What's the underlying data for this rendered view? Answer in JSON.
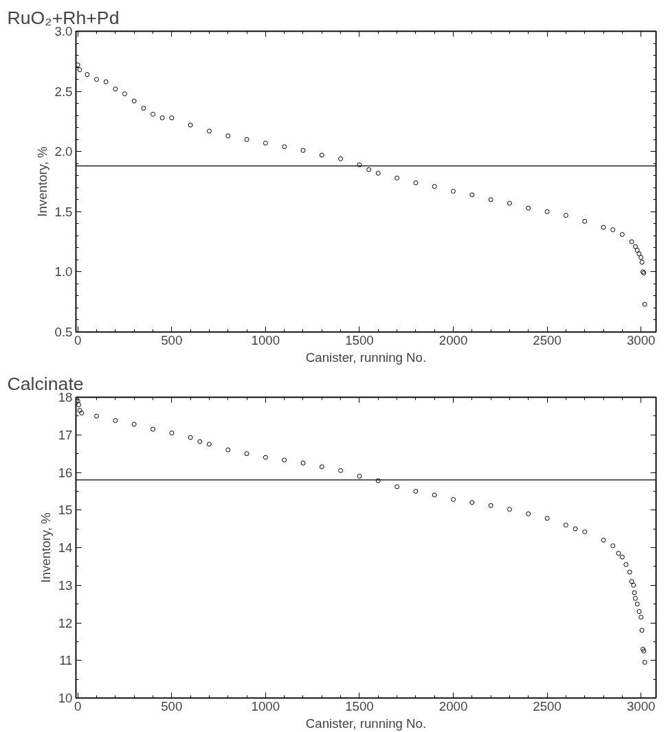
{
  "chart_data": [
    {
      "type": "scatter",
      "title": "RuO₂+Rh+Pd",
      "xlabel": "Canister, running No.",
      "ylabel": "Inventory, %",
      "marker": "circle",
      "grid": false,
      "xlim": [
        -10,
        3080
      ],
      "xticks": [
        0,
        500,
        1000,
        1500,
        2000,
        2500,
        3000
      ],
      "ylim": [
        0.5,
        3.0
      ],
      "yticks": [
        {
          "value": 0.5,
          "label": "0.5"
        },
        {
          "value": 1,
          "label": "1.0"
        },
        {
          "value": 1.5,
          "label": "1.5"
        },
        {
          "value": 2,
          "label": "2.0"
        },
        {
          "value": 2.5,
          "label": "2.5"
        },
        {
          "value": 3,
          "label": "3.0"
        }
      ],
      "ref_lines": [
        {
          "axis": "y",
          "value": 1.88,
          "color": "#000000"
        }
      ],
      "series": [
        {
          "color": "#000000",
          "x": [
            0,
            10,
            50,
            100,
            150,
            200,
            250,
            300,
            350,
            400,
            450,
            500,
            600,
            700,
            800,
            900,
            1000,
            1100,
            1200,
            1300,
            1400,
            1500,
            1550,
            1600,
            1700,
            1800,
            1900,
            2000,
            2100,
            2200,
            2300,
            2400,
            2500,
            2600,
            2700,
            2800,
            2850,
            2900,
            2950,
            2970,
            2980,
            2990,
            3000,
            3005,
            3010,
            3015,
            3020
          ],
          "values": [
            2.72,
            2.68,
            2.64,
            2.6,
            2.58,
            2.52,
            2.48,
            2.42,
            2.36,
            2.31,
            2.28,
            2.28,
            2.22,
            2.17,
            2.13,
            2.1,
            2.07,
            2.04,
            2.01,
            1.97,
            1.94,
            1.89,
            1.85,
            1.82,
            1.78,
            1.74,
            1.71,
            1.67,
            1.64,
            1.6,
            1.57,
            1.53,
            1.5,
            1.47,
            1.42,
            1.37,
            1.35,
            1.31,
            1.25,
            1.21,
            1.18,
            1.15,
            1.12,
            1.08,
            1.0,
            0.99,
            0.73
          ]
        }
      ]
    },
    {
      "type": "scatter",
      "title": "Calcinate",
      "xlabel": "Canister, running No.",
      "ylabel": "Inventory, %",
      "marker": "circle",
      "grid": false,
      "xlim": [
        -10,
        3080
      ],
      "xticks": [
        0,
        500,
        1000,
        1500,
        2000,
        2500,
        3000
      ],
      "ylim": [
        10,
        18
      ],
      "yticks": [
        10,
        11,
        12,
        13,
        14,
        15,
        16,
        17,
        18
      ],
      "ref_lines": [
        {
          "axis": "y",
          "value": 15.8,
          "color": "#000000"
        }
      ],
      "series": [
        {
          "color": "#000000",
          "x": [
            0,
            5,
            10,
            20,
            100,
            200,
            300,
            400,
            500,
            600,
            650,
            700,
            800,
            900,
            1000,
            1100,
            1200,
            1300,
            1400,
            1500,
            1600,
            1700,
            1800,
            1900,
            2000,
            2100,
            2200,
            2300,
            2400,
            2500,
            2600,
            2650,
            2700,
            2800,
            2850,
            2880,
            2900,
            2920,
            2940,
            2950,
            2960,
            2965,
            2970,
            2980,
            2990,
            3000,
            3005,
            3010,
            3015,
            3020
          ],
          "values": [
            17.9,
            17.8,
            17.65,
            17.58,
            17.5,
            17.38,
            17.28,
            17.15,
            17.05,
            16.93,
            16.82,
            16.75,
            16.6,
            16.5,
            16.4,
            16.33,
            16.25,
            16.15,
            16.05,
            15.9,
            15.78,
            15.62,
            15.5,
            15.4,
            15.28,
            15.2,
            15.12,
            15.02,
            14.9,
            14.78,
            14.6,
            14.5,
            14.42,
            14.2,
            14.05,
            13.85,
            13.75,
            13.55,
            13.35,
            13.1,
            13.0,
            12.8,
            12.65,
            12.5,
            12.3,
            12.15,
            11.8,
            11.3,
            11.25,
            10.95
          ]
        }
      ]
    }
  ]
}
